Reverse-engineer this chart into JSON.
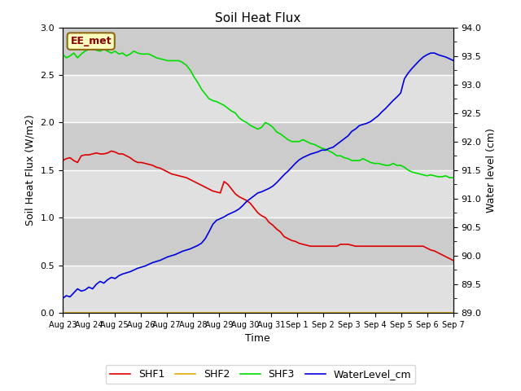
{
  "title": "Soil Heat Flux",
  "ylabel_left": "Soil Heat Flux (W/m2)",
  "ylabel_right": "Water level (cm)",
  "xlabel": "Time",
  "annotation": "EE_met",
  "ylim_left": [
    0.0,
    3.0
  ],
  "ylim_right": [
    89.0,
    94.0
  ],
  "xtick_labels": [
    "Aug 23",
    "Aug 24",
    "Aug 25",
    "Aug 26",
    "Aug 27",
    "Aug 28",
    "Aug 29",
    "Aug 30",
    "Aug 31",
    "Sep 1",
    "Sep 2",
    "Sep 3",
    "Sep 4",
    "Sep 5",
    "Sep 6",
    "Sep 7"
  ],
  "bg_color": "#e0e0e0",
  "bg_band_color": "#cccccc",
  "colors": {
    "SHF1": "#dd0000",
    "SHF2": "#ddaa00",
    "SHF3": "#00dd00",
    "WaterLevel_cm": "#0000dd"
  },
  "SHF1": [
    1.6,
    1.62,
    1.63,
    1.6,
    1.58,
    1.65,
    1.66,
    1.66,
    1.67,
    1.68,
    1.67,
    1.67,
    1.68,
    1.7,
    1.69,
    1.67,
    1.67,
    1.65,
    1.63,
    1.6,
    1.58,
    1.58,
    1.57,
    1.56,
    1.55,
    1.53,
    1.52,
    1.5,
    1.48,
    1.46,
    1.45,
    1.44,
    1.43,
    1.42,
    1.4,
    1.38,
    1.36,
    1.34,
    1.32,
    1.3,
    1.28,
    1.27,
    1.26,
    1.38,
    1.35,
    1.3,
    1.25,
    1.22,
    1.2,
    1.18,
    1.15,
    1.1,
    1.05,
    1.02,
    1.0,
    0.95,
    0.92,
    0.88,
    0.85,
    0.8,
    0.78,
    0.76,
    0.75,
    0.73,
    0.72,
    0.71,
    0.7,
    0.7,
    0.7,
    0.7,
    0.7,
    0.7,
    0.7,
    0.7,
    0.72,
    0.72,
    0.72,
    0.71,
    0.7,
    0.7,
    0.7,
    0.7,
    0.7,
    0.7,
    0.7,
    0.7,
    0.7,
    0.7,
    0.7,
    0.7,
    0.7,
    0.7,
    0.7,
    0.7,
    0.7,
    0.7,
    0.7,
    0.68,
    0.66,
    0.65,
    0.63,
    0.61,
    0.59,
    0.57,
    0.55
  ],
  "SHF2": [
    0.0,
    0.0,
    0.0,
    0.0,
    0.0,
    0.0,
    0.0,
    0.0,
    0.0,
    0.0,
    0.0,
    0.0,
    0.0,
    0.0,
    0.0,
    0.0,
    0.0,
    0.0,
    0.0,
    0.0,
    0.0,
    0.0,
    0.0,
    0.0,
    0.0,
    0.0,
    0.0,
    0.0,
    0.0,
    0.0,
    0.0,
    0.0,
    0.0,
    0.0,
    0.0,
    0.0,
    0.0,
    0.0,
    0.0,
    0.0,
    0.0,
    0.0,
    0.0,
    0.0,
    0.0,
    0.0,
    0.0,
    0.0,
    0.0,
    0.0,
    0.0,
    0.0,
    0.0,
    0.0,
    0.0,
    0.0,
    0.0,
    0.0,
    0.0,
    0.0,
    0.0,
    0.0,
    0.0,
    0.0,
    0.0,
    0.0,
    0.0,
    0.0,
    0.0,
    0.0,
    0.0,
    0.0,
    0.0,
    0.0,
    0.0,
    0.0,
    0.0,
    0.0,
    0.0,
    0.0,
    0.0,
    0.0,
    0.0,
    0.0,
    0.0,
    0.0,
    0.0,
    0.0,
    0.0,
    0.0,
    0.0,
    0.0,
    0.0,
    0.0,
    0.0,
    0.0,
    0.0,
    0.0,
    0.0,
    0.0,
    0.0,
    0.0,
    0.0,
    0.0,
    0.0
  ],
  "SHF3": [
    2.72,
    2.68,
    2.7,
    2.73,
    2.68,
    2.72,
    2.75,
    2.77,
    2.78,
    2.76,
    2.75,
    2.77,
    2.75,
    2.73,
    2.75,
    2.72,
    2.73,
    2.7,
    2.72,
    2.75,
    2.73,
    2.72,
    2.72,
    2.72,
    2.7,
    2.68,
    2.67,
    2.66,
    2.65,
    2.65,
    2.65,
    2.65,
    2.63,
    2.6,
    2.55,
    2.48,
    2.42,
    2.35,
    2.3,
    2.25,
    2.23,
    2.22,
    2.2,
    2.18,
    2.15,
    2.12,
    2.1,
    2.05,
    2.02,
    2.0,
    1.97,
    1.95,
    1.93,
    1.95,
    2.0,
    1.98,
    1.95,
    1.9,
    1.88,
    1.85,
    1.82,
    1.8,
    1.8,
    1.8,
    1.82,
    1.8,
    1.78,
    1.77,
    1.75,
    1.73,
    1.72,
    1.7,
    1.68,
    1.65,
    1.65,
    1.63,
    1.62,
    1.6,
    1.6,
    1.6,
    1.62,
    1.6,
    1.58,
    1.57,
    1.57,
    1.56,
    1.55,
    1.55,
    1.57,
    1.55,
    1.55,
    1.53,
    1.5,
    1.48,
    1.47,
    1.46,
    1.45,
    1.44,
    1.45,
    1.44,
    1.43,
    1.43,
    1.44,
    1.42,
    1.42
  ],
  "WaterLevel": [
    89.25,
    89.3,
    89.28,
    89.35,
    89.42,
    89.38,
    89.4,
    89.45,
    89.42,
    89.5,
    89.55,
    89.52,
    89.58,
    89.62,
    89.6,
    89.65,
    89.68,
    89.7,
    89.72,
    89.75,
    89.78,
    89.8,
    89.82,
    89.85,
    89.88,
    89.9,
    89.92,
    89.95,
    89.98,
    90.0,
    90.02,
    90.05,
    90.08,
    90.1,
    90.12,
    90.15,
    90.18,
    90.22,
    90.3,
    90.42,
    90.55,
    90.62,
    90.65,
    90.68,
    90.72,
    90.75,
    90.78,
    90.82,
    90.88,
    90.95,
    91.0,
    91.05,
    91.1,
    91.12,
    91.15,
    91.18,
    91.22,
    91.28,
    91.35,
    91.42,
    91.48,
    91.55,
    91.62,
    91.68,
    91.72,
    91.75,
    91.78,
    91.8,
    91.82,
    91.85,
    91.85,
    91.88,
    91.9,
    91.95,
    92.0,
    92.05,
    92.1,
    92.18,
    92.22,
    92.28,
    92.3,
    92.32,
    92.35,
    92.4,
    92.45,
    92.52,
    92.58,
    92.65,
    92.72,
    92.78,
    92.85,
    93.1,
    93.2,
    93.28,
    93.35,
    93.42,
    93.48,
    93.52,
    93.55,
    93.55,
    93.52,
    93.5,
    93.48,
    93.45,
    93.42
  ]
}
